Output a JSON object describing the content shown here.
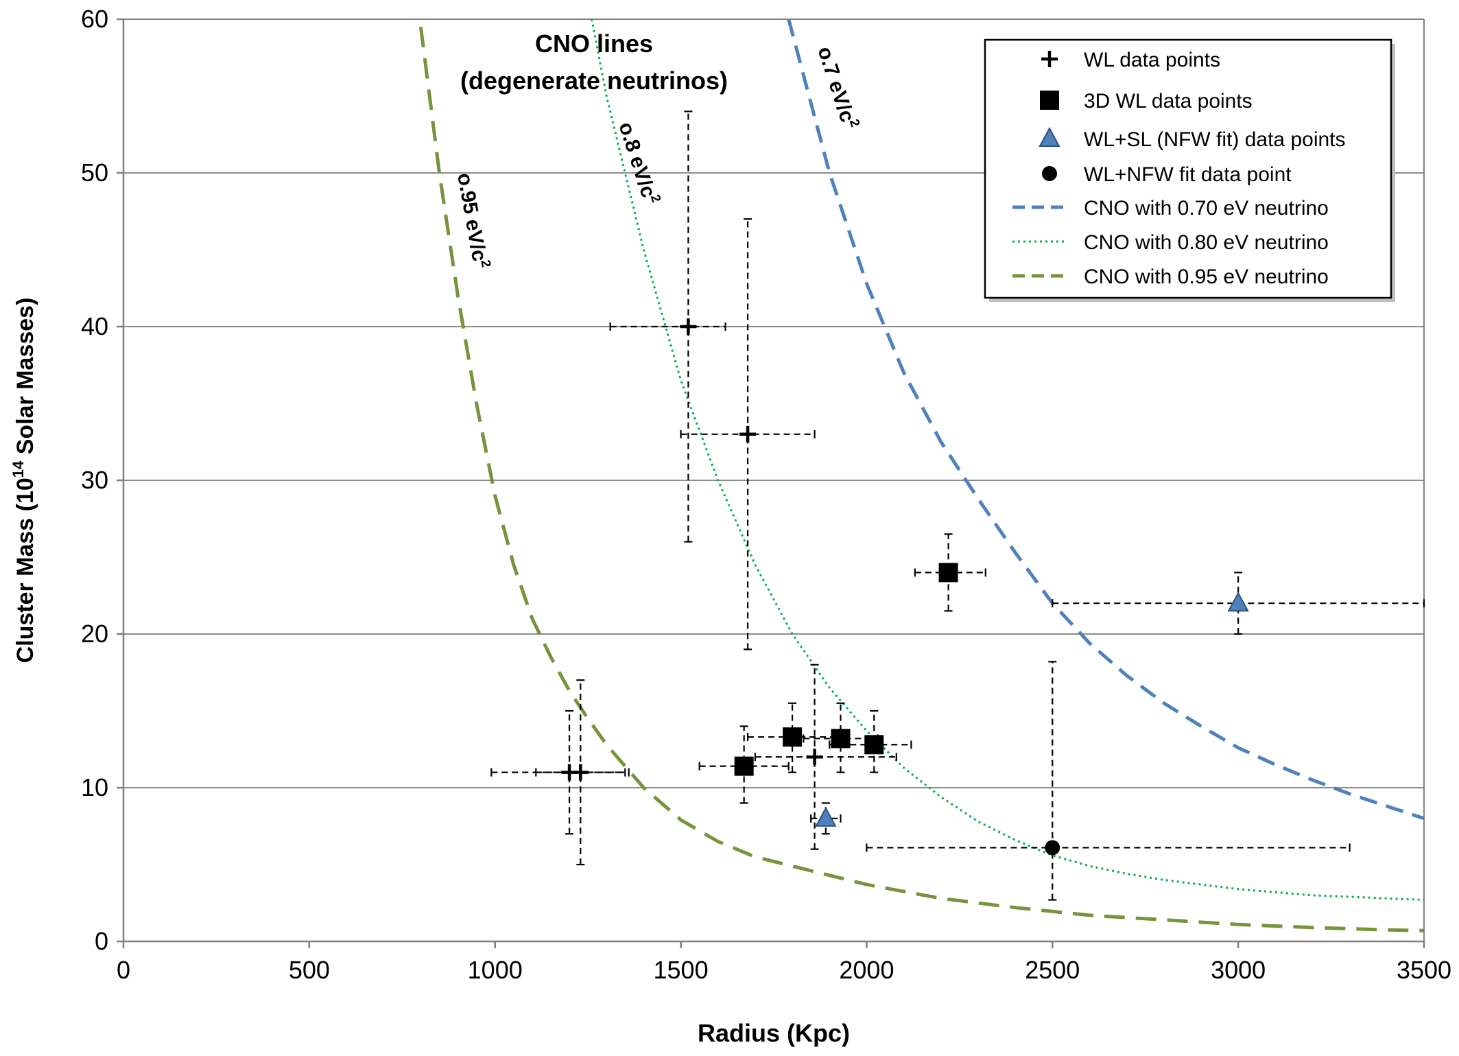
{
  "chart_data": {
    "type": "scatter",
    "title": "",
    "xlabel": "Radius (Kpc)",
    "ylabel_parts": [
      "Cluster Mass (10",
      "14",
      " Solar Masses)"
    ],
    "xlim": [
      0,
      3500
    ],
    "ylim": [
      0,
      60
    ],
    "x_ticks": [
      0,
      500,
      1000,
      1500,
      2000,
      2500,
      3000,
      3500
    ],
    "y_ticks": [
      0,
      10,
      20,
      30,
      40,
      50,
      60
    ],
    "grid": {
      "horizontal": true,
      "vertical": false
    },
    "legend_position": "top-right",
    "plot_annotation_lines": [
      "CNO  lines",
      "(degenerate neutrinos)"
    ],
    "curve_labels": [
      {
        "series": "CNO with 0.70 eV neutrino",
        "text": "o.7 eV/c",
        "sup": "2"
      },
      {
        "series": "CNO with 0.80 eV neutrino",
        "text": "o.8 eV/c",
        "sup": "2"
      },
      {
        "series": "CNO with 0.95 eV neutrino",
        "text": "o.95 eV/c",
        "sup": "2"
      }
    ],
    "series": [
      {
        "name": "WL data points",
        "marker": "plus",
        "color": "#000000",
        "points": [
          {
            "x": 1520,
            "y": 40,
            "xerr": [
              1310,
              1620
            ],
            "yerr": [
              26,
              54
            ]
          },
          {
            "x": 1680,
            "y": 33,
            "xerr": [
              1500,
              1860
            ],
            "yerr": [
              19,
              47
            ]
          },
          {
            "x": 1200,
            "y": 11,
            "xerr": [
              990,
              1350
            ],
            "yerr": [
              7,
              15
            ]
          },
          {
            "x": 1230,
            "y": 11,
            "xerr": [
              1110,
              1360
            ],
            "yerr": [
              5,
              17
            ]
          },
          {
            "x": 1860,
            "y": 12,
            "xerr": [
              1700,
              2080
            ],
            "yerr": [
              6,
              18
            ]
          }
        ]
      },
      {
        "name": "3D WL data points",
        "marker": "square",
        "color": "#000000",
        "points": [
          {
            "x": 2220,
            "y": 24,
            "xerr": [
              2130,
              2320
            ],
            "yerr": [
              21.5,
              26.5
            ]
          },
          {
            "x": 1800,
            "y": 13.3,
            "xerr": [
              1680,
              1920
            ],
            "yerr": [
              11,
              15.5
            ]
          },
          {
            "x": 1930,
            "y": 13.2,
            "xerr": [
              1830,
              2030
            ],
            "yerr": [
              11,
              15.5
            ]
          },
          {
            "x": 2020,
            "y": 12.8,
            "xerr": [
              1900,
              2120
            ],
            "yerr": [
              11,
              15
            ]
          },
          {
            "x": 1670,
            "y": 11.4,
            "xerr": [
              1550,
              1790
            ],
            "yerr": [
              9,
              14
            ]
          }
        ]
      },
      {
        "name": "WL+SL (NFW fit) data points",
        "marker": "triangle",
        "color": "#4f81bd",
        "points": [
          {
            "x": 3000,
            "y": 22,
            "xerr": [
              2500,
              3500
            ],
            "yerr": [
              20,
              24
            ]
          },
          {
            "x": 1890,
            "y": 8,
            "xerr": [
              1850,
              1930
            ],
            "yerr": [
              7,
              9
            ]
          }
        ]
      },
      {
        "name": "WL+NFW fit data point",
        "marker": "circle",
        "color": "#000000",
        "points": [
          {
            "x": 2500,
            "y": 6.1,
            "xerr": [
              2000,
              3300
            ],
            "yerr": [
              2.7,
              18.2
            ]
          }
        ]
      },
      {
        "name": "CNO with 0.70 eV neutrino",
        "type": "curve",
        "style": "dashed",
        "color": "#4f81bd",
        "x": [
          1790,
          1900,
          2000,
          2100,
          2200,
          2300,
          2400,
          2500,
          2600,
          2700,
          2800,
          2900,
          3000,
          3100,
          3200,
          3300,
          3400,
          3500
        ],
        "y": [
          60,
          50,
          42.8,
          37,
          32.5,
          28.8,
          25.3,
          22,
          19.4,
          17.3,
          15.5,
          14,
          12.6,
          11.5,
          10.5,
          9.6,
          8.8,
          8
        ]
      },
      {
        "name": "CNO with 0.80 eV neutrino",
        "type": "curve",
        "style": "dotted",
        "color": "#00b050",
        "x": [
          1260,
          1300,
          1400,
          1500,
          1600,
          1700,
          1800,
          1900,
          2000,
          2100,
          2200,
          2300,
          2400,
          2500,
          2600,
          2700,
          2800,
          2900,
          3000,
          3100,
          3200,
          3300,
          3400,
          3500
        ],
        "y": [
          60,
          55,
          45,
          36.5,
          30,
          24.5,
          20,
          16.5,
          13.7,
          11.3,
          9.4,
          7.8,
          6.6,
          5.6,
          4.9,
          4.4,
          4,
          3.7,
          3.4,
          3.2,
          3,
          2.9,
          2.8,
          2.7
        ]
      },
      {
        "name": "CNO with 0.95 eV neutrino",
        "type": "curve",
        "style": "dashed",
        "color": "#77933c",
        "x": [
          800,
          850,
          900,
          950,
          1000,
          1050,
          1100,
          1150,
          1200,
          1250,
          1300,
          1400,
          1500,
          1600,
          1700,
          1800,
          1900,
          2000,
          2200,
          2400,
          2600,
          2800,
          3000,
          3200,
          3400,
          3500
        ],
        "y": [
          59.5,
          50,
          42,
          35,
          29,
          24.5,
          21,
          18.5,
          16.3,
          14.5,
          12.8,
          10,
          7.9,
          6.5,
          5.5,
          4.9,
          4.3,
          3.7,
          2.8,
          2.2,
          1.7,
          1.4,
          1.1,
          0.9,
          0.75,
          0.7
        ]
      }
    ]
  }
}
